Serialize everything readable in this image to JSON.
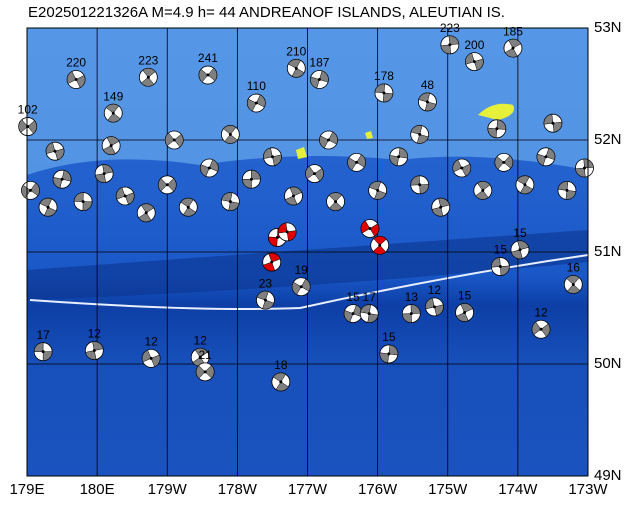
{
  "title": "E202501221326A  M=4.9  h= 44  ANDREANOF ISLANDS, ALEUTIAN IS.",
  "lonlim": [
    179,
    187
  ],
  "latlim": [
    49,
    53
  ],
  "lon_ticks": [
    {
      "value": 179,
      "label": "179E"
    },
    {
      "value": 180,
      "label": "180E"
    },
    {
      "value": 181,
      "label": "179W"
    },
    {
      "value": 182,
      "label": "178W"
    },
    {
      "value": 183,
      "label": "177W"
    },
    {
      "value": 184,
      "label": "176W"
    },
    {
      "value": 185,
      "label": "175W"
    },
    {
      "value": 186,
      "label": "174W"
    },
    {
      "value": 187,
      "label": "173W"
    }
  ],
  "lat_ticks": [
    {
      "value": 49,
      "label": "49N"
    },
    {
      "value": 50,
      "label": "50N"
    },
    {
      "value": 51,
      "label": "51N"
    },
    {
      "value": 52,
      "label": "52N"
    },
    {
      "value": 53,
      "label": "53N"
    }
  ],
  "events": [
    {
      "label": 17,
      "lon": 179.23,
      "lat": 50.11,
      "color": "#808080"
    },
    {
      "label": 12,
      "lon": 179.96,
      "lat": 50.12,
      "color": "#808080"
    },
    {
      "label": 12,
      "lon": 180.77,
      "lat": 50.05,
      "color": "#808080"
    },
    {
      "label": 12,
      "lon": 181.47,
      "lat": 50.06,
      "color": "#808080"
    },
    {
      "label": 21,
      "lon": 181.54,
      "lat": 49.93,
      "color": "#808080"
    },
    {
      "label": 18,
      "lon": 182.62,
      "lat": 49.84,
      "color": "#808080"
    },
    {
      "label": 15,
      "lon": 183.65,
      "lat": 50.45,
      "color": "#808080"
    },
    {
      "label": 17,
      "lon": 183.88,
      "lat": 50.45,
      "color": "#808080"
    },
    {
      "label": 13,
      "lon": 184.48,
      "lat": 50.45,
      "color": "#808080"
    },
    {
      "label": 12,
      "lon": 184.81,
      "lat": 50.51,
      "color": "#808080"
    },
    {
      "label": 15,
      "lon": 185.24,
      "lat": 50.46,
      "color": "#808080"
    },
    {
      "label": 12,
      "lon": 186.33,
      "lat": 50.31,
      "color": "#808080"
    },
    {
      "label": 16,
      "lon": 186.79,
      "lat": 50.71,
      "color": "#808080"
    },
    {
      "label": 19,
      "lon": 182.91,
      "lat": 50.69,
      "color": "#808080"
    },
    {
      "label": 23,
      "lon": 182.4,
      "lat": 50.57,
      "color": "#808080"
    },
    {
      "label": 15,
      "lon": 184.16,
      "lat": 50.09,
      "color": "#808080"
    },
    {
      "label": 15,
      "lon": 185.75,
      "lat": 50.87,
      "color": "#808080"
    },
    {
      "label": 15,
      "lon": 186.03,
      "lat": 51.02,
      "color": "#808080"
    },
    {
      "label": 220,
      "lon": 179.7,
      "lat": 52.54,
      "color": "#808080"
    },
    {
      "label": 223,
      "lon": 180.73,
      "lat": 52.56,
      "color": "#808080"
    },
    {
      "label": 241,
      "lon": 181.58,
      "lat": 52.58,
      "color": "#808080"
    },
    {
      "label": 210,
      "lon": 182.84,
      "lat": 52.64,
      "color": "#808080"
    },
    {
      "label": 187,
      "lon": 183.17,
      "lat": 52.54,
      "color": "#808080"
    },
    {
      "label": 178,
      "lon": 184.09,
      "lat": 52.42,
      "color": "#808080"
    },
    {
      "label": 223,
      "lon": 185.03,
      "lat": 52.85,
      "color": "#808080"
    },
    {
      "label": 200,
      "lon": 185.38,
      "lat": 52.7,
      "color": "#808080"
    },
    {
      "label": 185,
      "lon": 185.93,
      "lat": 52.82,
      "color": "#808080"
    },
    {
      "label": 102,
      "lon": 179.01,
      "lat": 52.12,
      "color": "#808080"
    },
    {
      "label": 149,
      "lon": 180.23,
      "lat": 52.24,
      "color": "#808080"
    },
    {
      "label": 110,
      "lon": 182.27,
      "lat": 52.33,
      "color": "#808080"
    },
    {
      "label": 48,
      "lon": 184.71,
      "lat": 52.34,
      "color": "#808080"
    },
    {
      "label": null,
      "lon": 182.57,
      "lat": 51.13,
      "color": "#e00000"
    },
    {
      "label": null,
      "lon": 182.71,
      "lat": 51.18,
      "color": "#e00000"
    },
    {
      "label": null,
      "lon": 182.49,
      "lat": 50.91,
      "color": "#e00000"
    },
    {
      "label": null,
      "lon": 183.89,
      "lat": 51.21,
      "color": "#e00000"
    },
    {
      "label": null,
      "lon": 184.03,
      "lat": 51.06,
      "color": "#e00000"
    },
    {
      "label": null,
      "lon": 179.05,
      "lat": 51.55,
      "color": "#808080"
    },
    {
      "label": null,
      "lon": 179.3,
      "lat": 51.4,
      "color": "#808080"
    },
    {
      "label": null,
      "lon": 179.5,
      "lat": 51.65,
      "color": "#808080"
    },
    {
      "label": null,
      "lon": 179.8,
      "lat": 51.45,
      "color": "#808080"
    },
    {
      "label": null,
      "lon": 180.1,
      "lat": 51.7,
      "color": "#808080"
    },
    {
      "label": null,
      "lon": 180.4,
      "lat": 51.5,
      "color": "#808080"
    },
    {
      "label": null,
      "lon": 180.7,
      "lat": 51.35,
      "color": "#808080"
    },
    {
      "label": null,
      "lon": 181.0,
      "lat": 51.6,
      "color": "#808080"
    },
    {
      "label": null,
      "lon": 181.3,
      "lat": 51.4,
      "color": "#808080"
    },
    {
      "label": null,
      "lon": 181.6,
      "lat": 51.75,
      "color": "#808080"
    },
    {
      "label": null,
      "lon": 181.9,
      "lat": 51.45,
      "color": "#808080"
    },
    {
      "label": null,
      "lon": 182.2,
      "lat": 51.65,
      "color": "#808080"
    },
    {
      "label": null,
      "lon": 182.5,
      "lat": 51.85,
      "color": "#808080"
    },
    {
      "label": null,
      "lon": 182.8,
      "lat": 51.5,
      "color": "#808080"
    },
    {
      "label": null,
      "lon": 183.1,
      "lat": 51.7,
      "color": "#808080"
    },
    {
      "label": null,
      "lon": 183.4,
      "lat": 51.45,
      "color": "#808080"
    },
    {
      "label": null,
      "lon": 183.7,
      "lat": 51.8,
      "color": "#808080"
    },
    {
      "label": null,
      "lon": 184.0,
      "lat": 51.55,
      "color": "#808080"
    },
    {
      "label": null,
      "lon": 184.3,
      "lat": 51.85,
      "color": "#808080"
    },
    {
      "label": null,
      "lon": 184.6,
      "lat": 51.6,
      "color": "#808080"
    },
    {
      "label": null,
      "lon": 184.9,
      "lat": 51.4,
      "color": "#808080"
    },
    {
      "label": null,
      "lon": 185.2,
      "lat": 51.75,
      "color": "#808080"
    },
    {
      "label": null,
      "lon": 185.5,
      "lat": 51.55,
      "color": "#808080"
    },
    {
      "label": null,
      "lon": 185.8,
      "lat": 51.8,
      "color": "#808080"
    },
    {
      "label": null,
      "lon": 186.1,
      "lat": 51.6,
      "color": "#808080"
    },
    {
      "label": null,
      "lon": 186.4,
      "lat": 51.85,
      "color": "#808080"
    },
    {
      "label": null,
      "lon": 186.7,
      "lat": 51.55,
      "color": "#808080"
    },
    {
      "label": null,
      "lon": 186.95,
      "lat": 51.75,
      "color": "#808080"
    },
    {
      "label": null,
      "lon": 179.4,
      "lat": 51.9,
      "color": "#808080"
    },
    {
      "label": null,
      "lon": 180.2,
      "lat": 51.95,
      "color": "#808080"
    },
    {
      "label": null,
      "lon": 181.1,
      "lat": 52.0,
      "color": "#808080"
    },
    {
      "label": null,
      "lon": 181.9,
      "lat": 52.05,
      "color": "#808080"
    },
    {
      "label": null,
      "lon": 183.3,
      "lat": 52.0,
      "color": "#808080"
    },
    {
      "label": null,
      "lon": 184.6,
      "lat": 52.05,
      "color": "#808080"
    },
    {
      "label": null,
      "lon": 185.7,
      "lat": 52.1,
      "color": "#808080"
    },
    {
      "label": null,
      "lon": 186.5,
      "lat": 52.15,
      "color": "#808080"
    }
  ]
}
